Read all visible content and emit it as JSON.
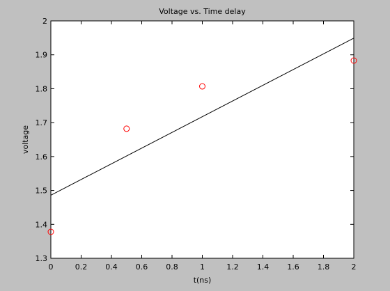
{
  "chart_data": {
    "type": "scatter",
    "title": "Voltage vs. Time delay",
    "xlabel": "t(ns)",
    "ylabel": "voltage",
    "xlim": [
      0,
      2
    ],
    "ylim": [
      1.3,
      2
    ],
    "x_ticks": [
      "0",
      "0.2",
      "0.4",
      "0.6",
      "0.8",
      "1",
      "1.2",
      "1.4",
      "1.6",
      "1.8",
      "2"
    ],
    "y_ticks": [
      "1.3",
      "1.4",
      "1.5",
      "1.6",
      "1.7",
      "1.8",
      "1.9",
      "2"
    ],
    "grid": false,
    "series": [
      {
        "type": "scatter",
        "marker": "circle-open",
        "color": "#ff0000",
        "x": [
          0,
          0.5,
          1,
          2
        ],
        "y": [
          1.378,
          1.682,
          1.807,
          1.883
        ]
      },
      {
        "type": "line",
        "color": "#000000",
        "x": [
          0,
          2
        ],
        "y": [
          1.486,
          1.949
        ]
      }
    ]
  }
}
